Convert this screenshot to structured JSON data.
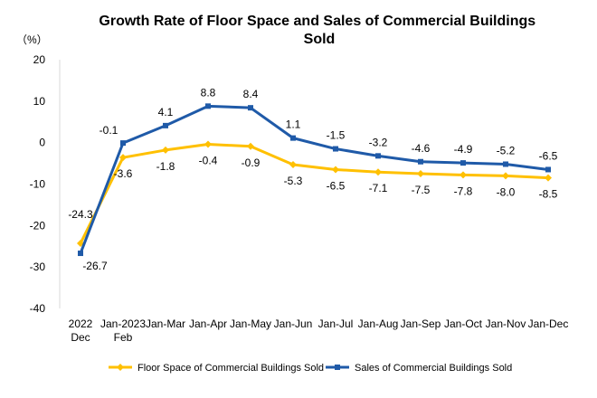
{
  "chart_data": {
    "type": "line",
    "title": "Growth Rate of Floor Space and Sales of Commercial Buildings Sold",
    "unit_label": "（%）",
    "xlabel": "",
    "ylabel": "",
    "ylim": [
      -40,
      20
    ],
    "yticks": [
      20,
      10,
      0,
      -10,
      -20,
      -30,
      -40
    ],
    "grid": false,
    "legend_position": "bottom",
    "categories": [
      "2022 Dec",
      "Jan-2023 Feb",
      "Jan-Mar",
      "Jan-Apr",
      "Jan-May",
      "Jan-Jun",
      "Jan-Jul",
      "Jan-Aug",
      "Jan-Sep",
      "Jan-Oct",
      "Jan-Nov",
      "Jan-Dec"
    ],
    "category_lines": [
      [
        "2022",
        "Dec"
      ],
      [
        "Jan-2023",
        "Feb"
      ],
      [
        "Jan-Mar"
      ],
      [
        "Jan-Apr"
      ],
      [
        "Jan-May"
      ],
      [
        "Jan-Jun"
      ],
      [
        "Jan-Jul"
      ],
      [
        "Jan-Aug"
      ],
      [
        "Jan-Sep"
      ],
      [
        "Jan-Oct"
      ],
      [
        "Jan-Nov"
      ],
      [
        "Jan-Dec"
      ]
    ],
    "series": [
      {
        "name": "Floor Space of Commercial Buildings Sold",
        "color": "#FFC000",
        "marker": "diamond",
        "values": [
          -24.3,
          -3.6,
          -1.8,
          -0.4,
          -0.9,
          -5.3,
          -6.5,
          -7.1,
          -7.5,
          -7.8,
          -8.0,
          -8.5
        ],
        "labels": [
          "-24.3",
          "-3.6",
          "-1.8",
          "-0.4",
          "-0.9",
          "-5.3",
          "-6.5",
          "-7.1",
          "-7.5",
          "-7.8",
          "-8.0",
          "-8.5"
        ]
      },
      {
        "name": "Sales of Commercial Buildings Sold",
        "color": "#1F5AA8",
        "marker": "square",
        "values": [
          -26.7,
          -0.1,
          4.1,
          8.8,
          8.4,
          1.1,
          -1.5,
          -3.2,
          -4.6,
          -4.9,
          -5.2,
          -6.5
        ],
        "labels": [
          "-26.7",
          "-0.1",
          "4.1",
          "8.8",
          "8.4",
          "1.1",
          "-1.5",
          "-3.2",
          "-4.6",
          "-4.9",
          "-5.2",
          "-6.5"
        ]
      }
    ]
  }
}
